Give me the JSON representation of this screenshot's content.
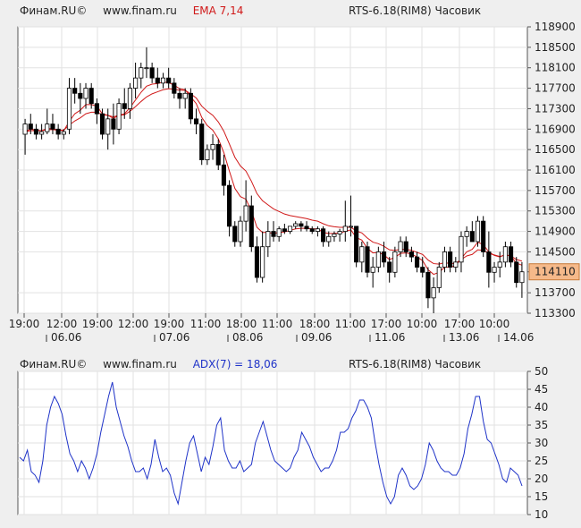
{
  "header_top": {
    "source": "Финам.RU©",
    "site": "www.finam.ru",
    "indicator": "EMA 7,14",
    "instrument": "RTS-6.18(RIM8) Часовик"
  },
  "header_bottom": {
    "source": "Финам.RU©",
    "site": "www.finam.ru",
    "indicator": "ADX(7) = 18,06",
    "instrument": "RTS-6.18(RIM8) Часовик"
  },
  "colors": {
    "ema": "#d01818",
    "adx": "#1f33c8",
    "candle_up": "#ffffff",
    "candle_down": "#000000",
    "price_tag": "#f5b98a"
  },
  "chart_data": [
    {
      "type": "candlestick",
      "title": "RTS-6.18(RIM8) Часовик",
      "series_label": "EMA 7,14",
      "ylim": [
        113300,
        118900
      ],
      "y_ticks": [
        118900,
        118500,
        118100,
        117700,
        117300,
        116900,
        116500,
        116100,
        115700,
        115300,
        114900,
        114500,
        114110,
        113700,
        113300
      ],
      "last_price": "114110",
      "time_labels": [
        "19:00",
        "12:00",
        "19:00",
        "12:00",
        "19:00",
        "11:00",
        "18:00",
        "11:00",
        "18:00",
        "11:00",
        "17:00",
        "10:00",
        "17:00",
        "10:00"
      ],
      "date_labels": [
        "06.06",
        "07.06",
        "08.06",
        "09.06",
        "11.06",
        "13.06",
        "14.06"
      ],
      "candles": [
        [
          116800,
          117100,
          116400,
          117000
        ],
        [
          117000,
          117200,
          116800,
          116900
        ],
        [
          116900,
          117000,
          116700,
          116800
        ],
        [
          116800,
          117000,
          116700,
          116850
        ],
        [
          116850,
          117300,
          116800,
          117000
        ],
        [
          117000,
          117200,
          116800,
          116900
        ],
        [
          116900,
          117000,
          116700,
          116800
        ],
        [
          116800,
          116900,
          116700,
          116850
        ],
        [
          116900,
          117900,
          116800,
          117700
        ],
        [
          117700,
          117900,
          117400,
          117600
        ],
        [
          117600,
          117800,
          117200,
          117500
        ],
        [
          117500,
          117800,
          117300,
          117700
        ],
        [
          117700,
          117800,
          117300,
          117400
        ],
        [
          117400,
          117500,
          117000,
          117200
        ],
        [
          117200,
          117300,
          116700,
          116800
        ],
        [
          116800,
          117300,
          116500,
          117100
        ],
        [
          117100,
          117400,
          116600,
          116900
        ],
        [
          116900,
          117500,
          116800,
          117400
        ],
        [
          117400,
          117700,
          117100,
          117300
        ],
        [
          117300,
          117800,
          117100,
          117700
        ],
        [
          117700,
          118200,
          117500,
          117900
        ],
        [
          117900,
          118200,
          117700,
          118100
        ],
        [
          118100,
          118500,
          117900,
          118100
        ],
        [
          118100,
          118200,
          117800,
          117900
        ],
        [
          117900,
          118100,
          117700,
          117800
        ],
        [
          117800,
          118000,
          117700,
          117900
        ],
        [
          117900,
          118100,
          117700,
          117800
        ],
        [
          117800,
          117900,
          117500,
          117600
        ],
        [
          117600,
          117700,
          117300,
          117500
        ],
        [
          117500,
          117700,
          117300,
          117600
        ],
        [
          117600,
          117700,
          117000,
          117100
        ],
        [
          117100,
          117300,
          116800,
          117000
        ],
        [
          117000,
          117100,
          116200,
          116300
        ],
        [
          116300,
          116600,
          116200,
          116500
        ],
        [
          116500,
          116800,
          116300,
          116600
        ],
        [
          116600,
          116700,
          116100,
          116200
        ],
        [
          116200,
          116400,
          115600,
          115800
        ],
        [
          115800,
          115900,
          114800,
          115000
        ],
        [
          115000,
          115100,
          114600,
          114700
        ],
        [
          114700,
          115200,
          114600,
          115100
        ],
        [
          115100,
          115900,
          114900,
          115400
        ],
        [
          115400,
          115600,
          114500,
          114600
        ],
        [
          114600,
          114800,
          113900,
          114000
        ],
        [
          114000,
          114900,
          113900,
          114600
        ],
        [
          114600,
          115100,
          114400,
          114900
        ],
        [
          114900,
          115100,
          114700,
          114800
        ],
        [
          114800,
          115000,
          114700,
          114950
        ],
        [
          114950,
          115050,
          114850,
          114900
        ],
        [
          114900,
          115000,
          114850,
          115000
        ],
        [
          115000,
          115100,
          114950,
          115050
        ],
        [
          115050,
          115100,
          114900,
          115000
        ],
        [
          115000,
          115100,
          114900,
          114950
        ],
        [
          114950,
          115000,
          114850,
          114900
        ],
        [
          114900,
          115000,
          114800,
          114950
        ],
        [
          114950,
          115000,
          114600,
          114700
        ],
        [
          114700,
          114900,
          114600,
          114800
        ],
        [
          114800,
          114900,
          114700,
          114850
        ],
        [
          114850,
          114950,
          114700,
          114900
        ],
        [
          114900,
          115500,
          114700,
          115000
        ],
        [
          115000,
          115600,
          114800,
          115000
        ],
        [
          115000,
          115000,
          114200,
          114300
        ],
        [
          114300,
          114700,
          114100,
          114600
        ],
        [
          114600,
          114700,
          114000,
          114100
        ],
        [
          114100,
          114400,
          113800,
          114200
        ],
        [
          114200,
          114600,
          114100,
          114500
        ],
        [
          114500,
          114700,
          114200,
          114300
        ],
        [
          114300,
          114400,
          113900,
          114100
        ],
        [
          114100,
          114600,
          114000,
          114500
        ],
        [
          114500,
          114800,
          114400,
          114700
        ],
        [
          114700,
          114800,
          114400,
          114500
        ],
        [
          114500,
          114600,
          114300,
          114400
        ],
        [
          114400,
          114500,
          114100,
          114200
        ],
        [
          114200,
          114400,
          114000,
          114100
        ],
        [
          114100,
          114200,
          113400,
          113600
        ],
        [
          113600,
          114000,
          113300,
          113800
        ],
        [
          113800,
          114300,
          113700,
          114200
        ],
        [
          114200,
          114600,
          114100,
          114500
        ],
        [
          114500,
          114600,
          114100,
          114200
        ],
        [
          114200,
          114400,
          114100,
          114300
        ],
        [
          114300,
          114900,
          114100,
          114800
        ],
        [
          114800,
          115000,
          114600,
          114900
        ],
        [
          114900,
          115100,
          114700,
          114700
        ],
        [
          114700,
          115200,
          114600,
          115100
        ],
        [
          115100,
          115200,
          114400,
          114500
        ],
        [
          114500,
          114900,
          113800,
          114100
        ],
        [
          114100,
          114300,
          113900,
          114200
        ],
        [
          114200,
          114500,
          114000,
          114300
        ],
        [
          114300,
          114700,
          114200,
          114600
        ],
        [
          114600,
          114700,
          114200,
          114300
        ],
        [
          114300,
          114400,
          113800,
          113900
        ],
        [
          113900,
          114300,
          113600,
          114110
        ]
      ],
      "ema_fast": [
        116850,
        116900,
        116880,
        116870,
        116910,
        116910,
        116880,
        116870,
        117050,
        117200,
        117270,
        117380,
        117380,
        117350,
        117200,
        117170,
        117110,
        117170,
        117200,
        117320,
        117470,
        117620,
        117740,
        117780,
        117790,
        117820,
        117810,
        117760,
        117690,
        117670,
        117530,
        117400,
        117130,
        116970,
        116880,
        116710,
        116440,
        116080,
        115740,
        115580,
        115530,
        115300,
        114980,
        114880,
        114880,
        114860,
        114880,
        114890,
        114920,
        114950,
        114960,
        114960,
        114950,
        114950,
        114880,
        114860,
        114860,
        114870,
        114900,
        114930,
        114780,
        114730,
        114570,
        114480,
        114490,
        114440,
        114350,
        114390,
        114470,
        114480,
        114460,
        114400,
        114330,
        114150,
        114060,
        114100,
        114200,
        114200,
        114230,
        114370,
        114500,
        114550,
        114690,
        114640,
        114500,
        114430,
        114400,
        114450,
        114410,
        114280,
        114240
      ],
      "ema_slow": [
        116850,
        116870,
        116870,
        116870,
        116890,
        116890,
        116880,
        116880,
        116980,
        117060,
        117120,
        117200,
        117230,
        117230,
        117180,
        117170,
        117140,
        117170,
        117180,
        117250,
        117340,
        117440,
        117530,
        117590,
        117630,
        117670,
        117690,
        117680,
        117660,
        117660,
        117590,
        117510,
        117350,
        117250,
        117170,
        117040,
        116860,
        116610,
        116350,
        116180,
        116080,
        115880,
        115640,
        115500,
        115420,
        115340,
        115290,
        115240,
        115210,
        115190,
        115170,
        115150,
        115120,
        115100,
        115050,
        115010,
        114990,
        114980,
        114980,
        114980,
        114910,
        114870,
        114770,
        114690,
        114660,
        114610,
        114540,
        114530,
        114550,
        114550,
        114530,
        114490,
        114450,
        114340,
        114270,
        114260,
        114290,
        114270,
        114280,
        114350,
        114420,
        114450,
        114540,
        114530,
        114470,
        114440,
        114410,
        114440,
        114420,
        114350,
        114320
      ]
    },
    {
      "type": "line",
      "title": "RTS-6.18(RIM8) Часовик",
      "series": [
        {
          "name": "ADX(7) = 18,06",
          "values": [
            26,
            25,
            28,
            22,
            21,
            19,
            25,
            35,
            40,
            43,
            41,
            38,
            32,
            27,
            25,
            22,
            25,
            23,
            20,
            23,
            27,
            33,
            38,
            43,
            47,
            40,
            36,
            32,
            29,
            25,
            22,
            22,
            23,
            20,
            24,
            31,
            26,
            22,
            23,
            21,
            16,
            13,
            19,
            25,
            30,
            32,
            27,
            22,
            26,
            24,
            29,
            35,
            37,
            28,
            25,
            23,
            23,
            25,
            22,
            23,
            24,
            30,
            33,
            36,
            32,
            28,
            25,
            24,
            23,
            22,
            23,
            26,
            28,
            33,
            31,
            29,
            26,
            24,
            22,
            23,
            23,
            25,
            28,
            33,
            33,
            34,
            37,
            39,
            42,
            42,
            40,
            37,
            30,
            24,
            19,
            15,
            13,
            15,
            21,
            23,
            21,
            18,
            17,
            18,
            20,
            24,
            30,
            28,
            25,
            23,
            22,
            22,
            21,
            21,
            23,
            27,
            34,
            38,
            43,
            43,
            36,
            31,
            30,
            27,
            24,
            20,
            19,
            23,
            22,
            21,
            18
          ]
        }
      ],
      "ylim": [
        10,
        50
      ],
      "y_ticks": [
        50,
        45,
        40,
        35,
        30,
        25,
        20,
        15,
        10
      ]
    }
  ]
}
